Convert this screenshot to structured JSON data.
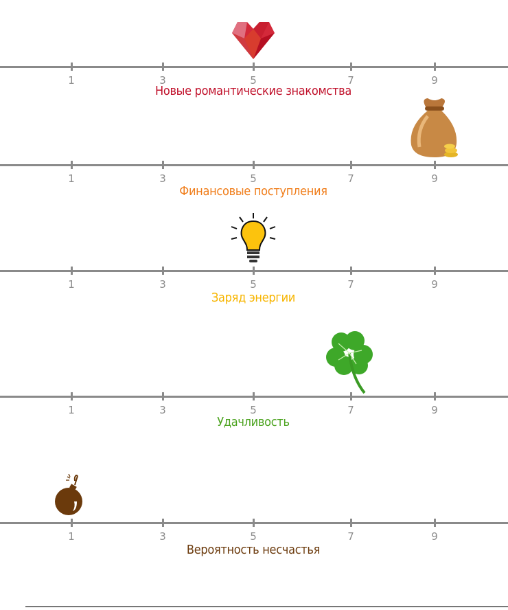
{
  "chart_data": {
    "type": "scatter",
    "ticks": [
      1,
      3,
      5,
      7,
      9
    ],
    "scales": [
      {
        "name": "Новые романтические знакомства",
        "value": 5,
        "icon": "heart-icon",
        "color": "#c0102a"
      },
      {
        "name": "Финансовые поступления",
        "value": 9,
        "icon": "money-bag-icon",
        "color": "#f07d1a"
      },
      {
        "name": "Заряд энергии",
        "value": 5,
        "icon": "lightbulb-icon",
        "color": "#f7b500"
      },
      {
        "name": "Удачливость",
        "value": 7,
        "icon": "clover-icon",
        "color": "#4aa21d"
      },
      {
        "name": "Вероятность несчастья",
        "value": 1,
        "icon": "bomb-icon",
        "color": "#6b3a0c"
      }
    ]
  }
}
